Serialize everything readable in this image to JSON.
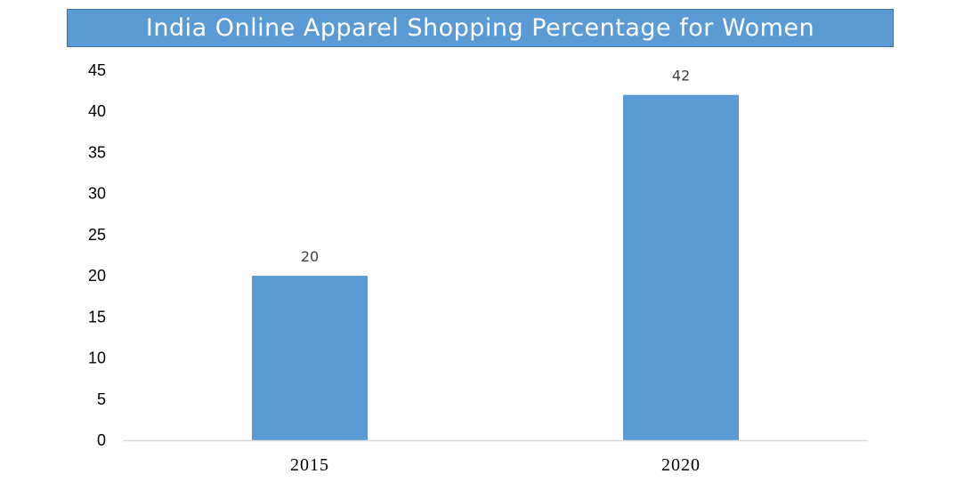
{
  "chart_data": {
    "type": "bar",
    "title": "India Online Apparel Shopping Percentage for Women",
    "categories": [
      "2015",
      "2020"
    ],
    "values": [
      20,
      42
    ],
    "data_labels": [
      "20",
      "42"
    ],
    "ylim": [
      0,
      45
    ],
    "yticks": [
      "0",
      "5",
      "10",
      "15",
      "20",
      "25",
      "30",
      "35",
      "40",
      "45"
    ],
    "xlabel": "",
    "ylabel": "",
    "grid": false,
    "legend": "none",
    "bar_color": "#5b9bd5",
    "title_bg_color": "#5b9bd5"
  }
}
